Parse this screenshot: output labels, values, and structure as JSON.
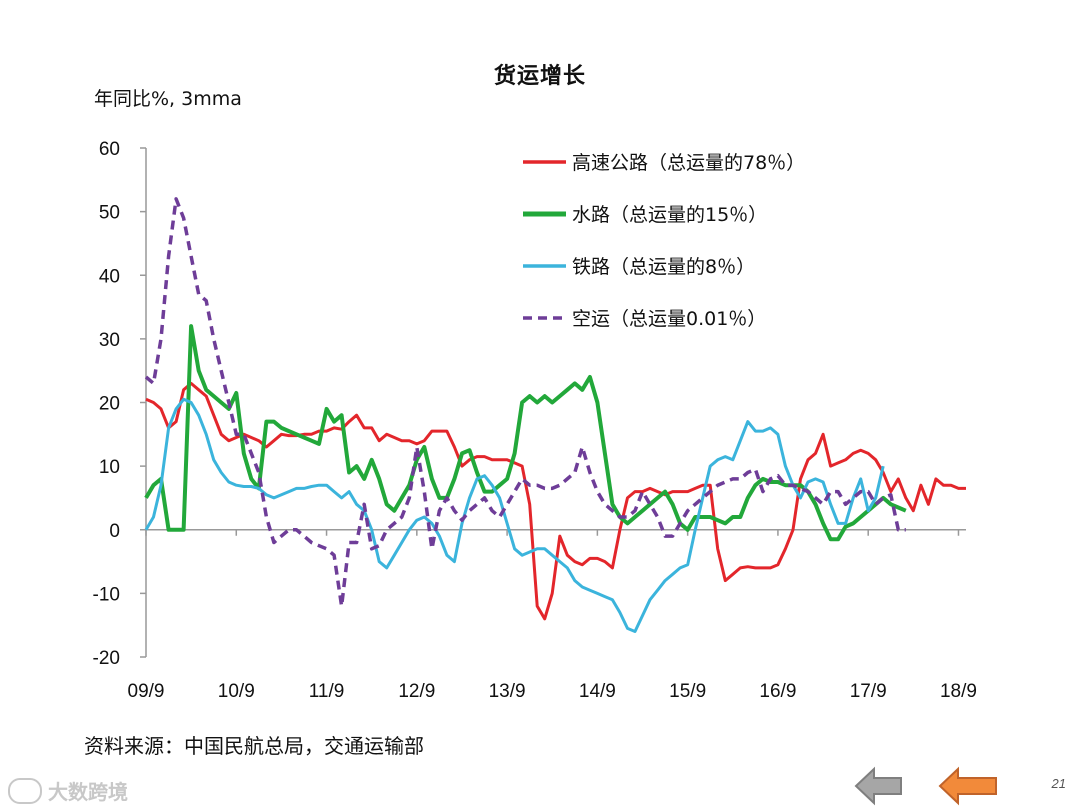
{
  "title": "货运增长",
  "y_axis_note": "年同比%, 3mma",
  "source": "资料来源：中国民航总局，交通运输部",
  "watermark": "大数跨境",
  "page_number": "21",
  "nav": {
    "prev_icon": "arrow-left-gray-icon",
    "next_icon": "arrow-left-orange-icon"
  },
  "colors": {
    "highway": "#e3262b",
    "water": "#22a83a",
    "rail": "#3bb4dc",
    "air": "#6e3d98",
    "axis": "#999999"
  },
  "chart_data": {
    "type": "line",
    "title": "货运增长",
    "ylabel": "年同比%, 3mma",
    "ylim": [
      -20,
      60
    ],
    "yticks": [
      60,
      50,
      40,
      30,
      20,
      10,
      0,
      -10,
      -20
    ],
    "xlim": [
      0,
      109
    ],
    "xtick_labels": [
      "09/9",
      "10/9",
      "11/9",
      "12/9",
      "13/9",
      "14/9",
      "15/9",
      "16/9",
      "17/9",
      "18/9"
    ],
    "xtick_positions": [
      0,
      12,
      24,
      36,
      48,
      60,
      72,
      84,
      96,
      108
    ],
    "legend_position": "top-right",
    "series": [
      {
        "name": "高速公路（总运量的78％）",
        "style": "solid",
        "values": [
          20.5,
          20,
          19,
          16,
          17,
          22,
          23,
          22,
          21,
          18,
          15,
          14,
          14.5,
          15,
          14.5,
          14,
          13,
          14,
          15,
          14.8,
          14.8,
          15,
          15,
          15.5,
          15.5,
          16,
          15.8,
          17,
          18,
          16,
          16,
          14,
          15,
          14.5,
          14,
          14,
          13.5,
          14,
          15.5,
          15.5,
          15.5,
          13,
          10,
          11,
          11.5,
          11.5,
          11,
          11,
          11,
          10.5,
          10,
          4,
          -12,
          -14,
          -10,
          -1,
          -4,
          -5,
          -5.5,
          -4.5,
          -4.5,
          -5,
          -6,
          0,
          5,
          6,
          6,
          6.5,
          6,
          5.5,
          6,
          6,
          6,
          6.5,
          7,
          7,
          -3,
          -8,
          -7,
          -6,
          -5.8,
          -6,
          -6,
          -6,
          -5.5,
          -3,
          0,
          8,
          11,
          12,
          15,
          10,
          10.5,
          11,
          12,
          12.5,
          12,
          11,
          9,
          6,
          8,
          5,
          3,
          7,
          4,
          8,
          7,
          7,
          6.5,
          6.5
        ]
      },
      {
        "name": "水路（总运量的15％）",
        "style": "solid",
        "values": [
          5,
          7,
          8,
          0,
          0,
          0,
          32,
          25,
          22,
          21,
          20,
          19,
          21.5,
          12,
          8,
          6.5,
          17,
          17,
          16,
          15.5,
          15,
          14.5,
          14,
          13.5,
          19,
          17,
          18,
          9,
          10,
          8,
          11,
          8,
          4,
          3,
          5,
          7,
          11,
          13,
          8,
          5,
          5,
          8,
          12,
          12.5,
          9,
          6,
          6,
          7,
          8,
          12,
          20,
          21,
          20,
          21,
          20,
          21,
          22,
          23,
          22,
          24,
          20,
          12,
          4,
          2,
          1,
          2,
          3,
          4,
          5,
          6,
          4,
          1,
          0,
          2,
          2,
          2,
          1.5,
          1,
          2,
          2,
          5,
          7,
          8,
          7.5,
          7.5,
          7,
          7,
          7,
          6,
          4,
          1,
          -1.5,
          -1.5,
          0.5,
          1,
          2,
          3,
          4,
          5,
          4,
          3.5,
          3
        ]
      },
      {
        "name": "铁路（总运量的8％）",
        "style": "solid",
        "values": [
          0,
          2,
          7,
          16,
          19,
          20.5,
          20,
          18,
          15,
          11,
          9,
          7.5,
          7,
          6.8,
          6.8,
          6.5,
          5.5,
          5,
          5.5,
          6,
          6.5,
          6.5,
          6.8,
          7,
          7,
          6,
          5,
          6,
          4,
          3,
          0,
          -5,
          -6,
          -4,
          -2,
          0,
          1.5,
          2,
          1,
          -1,
          -4,
          -5,
          1,
          5,
          8,
          8.5,
          7,
          5,
          1,
          -3,
          -4,
          -3.5,
          -3,
          -3,
          -4,
          -5,
          -6,
          -8,
          -9,
          -9.5,
          -10,
          -10.5,
          -11,
          -13,
          -15.5,
          -16,
          -13.5,
          -11,
          -9.5,
          -8,
          -7,
          -6,
          -5.5,
          0,
          5,
          10,
          11,
          11.5,
          11,
          14,
          17,
          15.5,
          15.5,
          16,
          15,
          10,
          7,
          5,
          7.5,
          8,
          7.5,
          4,
          1,
          1,
          5,
          8,
          3,
          5,
          10
        ]
      },
      {
        "name": "空运（总运量0.01％）",
        "style": "dashed",
        "values": [
          24,
          23,
          30,
          43,
          52,
          49,
          43,
          37,
          36,
          30,
          25,
          20,
          15,
          15,
          12,
          9,
          2,
          -2,
          -1,
          0,
          0,
          -1,
          -2,
          -2.5,
          -3,
          -4,
          -12,
          -2,
          -2,
          4,
          -3,
          -2.5,
          0,
          1,
          2,
          5,
          13,
          6,
          -3,
          3,
          5,
          3,
          1.5,
          3,
          4,
          5,
          3,
          2,
          4,
          6,
          8,
          7,
          7,
          6.5,
          6.5,
          7,
          8,
          9,
          13,
          9,
          6,
          4,
          3,
          2,
          2,
          3,
          6,
          4,
          2,
          -1,
          -1,
          1,
          3,
          4,
          5,
          6,
          7,
          7.5,
          8,
          8,
          9,
          9.5,
          6,
          8,
          8.5,
          7,
          7,
          6.5,
          6,
          5,
          4,
          6,
          6,
          4,
          5,
          6,
          6,
          4,
          5,
          5.5,
          0,
          0
        ]
      }
    ]
  }
}
